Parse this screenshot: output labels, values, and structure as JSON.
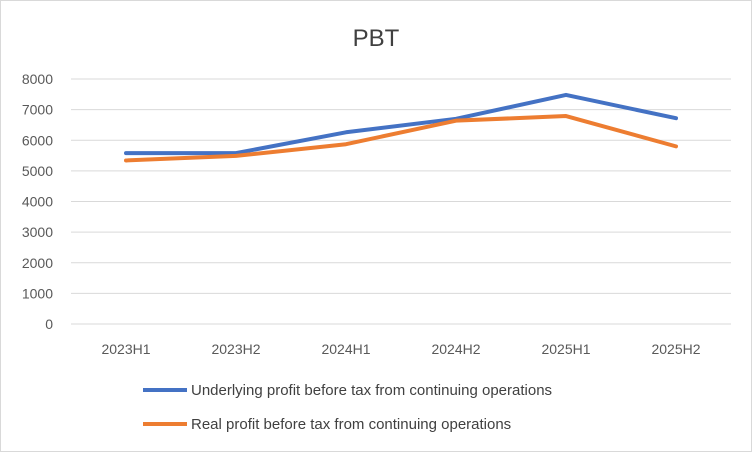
{
  "chart_data": {
    "type": "line",
    "title": "PBT",
    "xlabel": "",
    "ylabel": "",
    "categories": [
      "2023H1",
      "2023H2",
      "2024H1",
      "2024H2",
      "2025H1",
      "2025H2"
    ],
    "y_ticks": [
      "0",
      "1000",
      "2000",
      "3000",
      "4000",
      "5000",
      "6000",
      "7000",
      "8000"
    ],
    "ylim": [
      0,
      8000
    ],
    "grid": true,
    "legend_position": "bottom",
    "series": [
      {
        "name": "Underlying profit before tax from continuing operations",
        "color": "#4472C4",
        "values": [
          5580,
          5580,
          6260,
          6700,
          7480,
          6720
        ]
      },
      {
        "name": "Real profit before tax from continuing operations",
        "color": "#ED7D31",
        "values": [
          5340,
          5490,
          5870,
          6640,
          6790,
          5800
        ]
      }
    ]
  }
}
